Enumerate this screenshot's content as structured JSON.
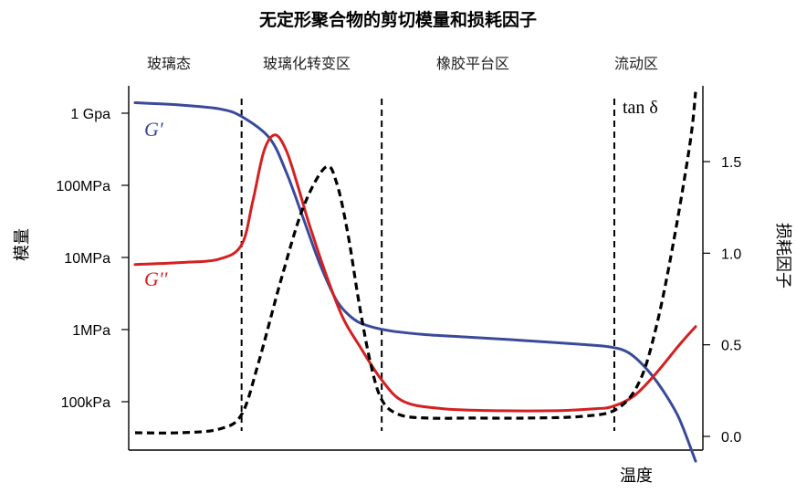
{
  "chart_data": {
    "type": "line",
    "title": "无定形聚合物的剪切模量和损耗因子",
    "xlabel": "温度",
    "ylabel_left": "模量",
    "ylabel_right": "损耗因子",
    "regions": [
      "玻璃态",
      "玻璃化转变区",
      "橡胶平台区",
      "流动区"
    ],
    "y_left_ticks": [
      "1 Gpa",
      "100MPa",
      "10MPa",
      "1MPa",
      "100kPa"
    ],
    "y_left_tick_values": [
      1000000000,
      100000000,
      10000000,
      1000000,
      100000
    ],
    "y_right_ticks": [
      "1.5",
      "1.0",
      "0.5",
      "0.0"
    ],
    "y_right_tick_values": [
      1.5,
      1.0,
      0.5,
      0.0
    ],
    "y_left_scale": "log",
    "ylim_right": [
      0,
      1.8
    ],
    "grid": false,
    "boundary_positions": [
      0.19,
      0.44,
      0.855
    ],
    "series": [
      {
        "name": "G'",
        "axis": "left",
        "color": "#3a4a9a",
        "x": [
          0.0,
          0.08,
          0.15,
          0.19,
          0.24,
          0.27,
          0.3,
          0.33,
          0.36,
          0.39,
          0.42,
          0.46,
          0.52,
          0.6,
          0.7,
          0.8,
          0.85,
          0.88,
          0.91,
          0.94,
          0.97,
          1.0
        ],
        "y": [
          1400000000,
          1300000000,
          1150000000,
          900000000,
          450000000,
          150000000,
          35000000,
          8000000,
          2500000,
          1400000,
          1100000,
          950000,
          850000,
          780000,
          700000,
          620000,
          570000,
          480000,
          300000,
          150000,
          60000,
          15000
        ]
      },
      {
        "name": "G''",
        "axis": "left",
        "color": "#d42020",
        "x": [
          0.0,
          0.08,
          0.15,
          0.19,
          0.21,
          0.23,
          0.25,
          0.27,
          0.29,
          0.31,
          0.34,
          0.37,
          0.4,
          0.44,
          0.48,
          0.55,
          0.65,
          0.75,
          0.82,
          0.85,
          0.89,
          0.93,
          0.97,
          1.0
        ],
        "y": [
          8000000,
          8500000,
          9500000,
          15000000,
          60000000,
          300000000,
          500000000,
          300000000,
          100000000,
          30000000,
          6000000,
          1500000,
          600000,
          200000,
          100000,
          80000,
          75000,
          75000,
          80000,
          85000,
          120000,
          250000,
          600000,
          1100000
        ]
      },
      {
        "name": "tan δ",
        "axis": "right",
        "color": "#000000",
        "dashed": true,
        "x": [
          0.0,
          0.08,
          0.15,
          0.19,
          0.22,
          0.26,
          0.3,
          0.34,
          0.36,
          0.38,
          0.4,
          0.42,
          0.44,
          0.47,
          0.52,
          0.6,
          0.7,
          0.8,
          0.86,
          0.9,
          0.93,
          0.96,
          0.99,
          1.0
        ],
        "y": [
          0.02,
          0.02,
          0.04,
          0.12,
          0.4,
          0.85,
          1.25,
          1.47,
          1.38,
          1.1,
          0.72,
          0.4,
          0.2,
          0.12,
          0.1,
          0.1,
          0.1,
          0.11,
          0.15,
          0.3,
          0.6,
          1.05,
          1.6,
          1.88
        ]
      }
    ]
  }
}
